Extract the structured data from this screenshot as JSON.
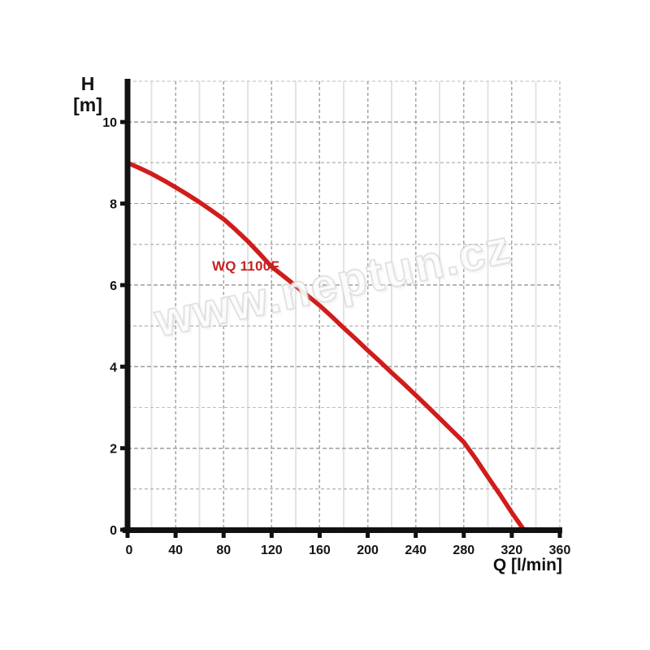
{
  "page": {
    "background": "#ffffff"
  },
  "watermark": {
    "text": "www.neptun.cz"
  },
  "chart_data": {
    "type": "line",
    "title": "",
    "xlabel": "Q [l/min]",
    "ylabel": "H [m]",
    "ylabel_lines": [
      "H",
      "[m]"
    ],
    "xlim": [
      0,
      360
    ],
    "ylim": [
      0,
      11
    ],
    "x_major_ticks": [
      0,
      40,
      80,
      120,
      160,
      200,
      240,
      280,
      320,
      360
    ],
    "x_minor_step": 20,
    "y_major_ticks": [
      0,
      2,
      4,
      6,
      8,
      10
    ],
    "y_minor_step": 1,
    "grid": "on",
    "legend_position": "none",
    "series": [
      {
        "name": "WQ 1100F",
        "color": "#d11c1c",
        "x": [
          0,
          10,
          20,
          30,
          40,
          50,
          60,
          70,
          80,
          90,
          100,
          110,
          120,
          130,
          140,
          150,
          160,
          170,
          180,
          190,
          200,
          210,
          220,
          230,
          240,
          250,
          260,
          270,
          280,
          290,
          300,
          310,
          320,
          330
        ],
        "y": [
          9.0,
          8.87,
          8.73,
          8.57,
          8.4,
          8.22,
          8.03,
          7.83,
          7.62,
          7.36,
          7.08,
          6.77,
          6.45,
          6.22,
          5.98,
          5.74,
          5.5,
          5.23,
          4.95,
          4.68,
          4.4,
          4.13,
          3.85,
          3.58,
          3.3,
          3.02,
          2.73,
          2.44,
          2.15,
          1.74,
          1.3,
          0.87,
          0.42,
          0.0
        ]
      }
    ],
    "colors": {
      "axis": "#111111",
      "tick_text": "#141414",
      "grid_major_h": "#9e9e9e",
      "grid_minor_h": "#bdbdbd",
      "grid_major_v": "#a6a6a6",
      "grid_minor_v": "#e3e3e3",
      "curve": "#d11c1c",
      "series_label": "#c32222"
    }
  }
}
